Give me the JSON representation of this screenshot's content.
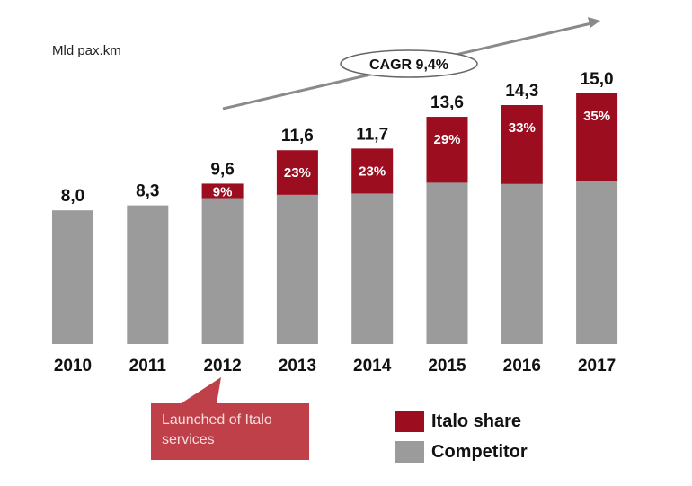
{
  "chart_data": {
    "type": "bar",
    "stacked": true,
    "unit_label": "Mld pax.km",
    "categories": [
      "2010",
      "2011",
      "2012",
      "2013",
      "2014",
      "2015",
      "2016",
      "2017"
    ],
    "totals": [
      8.0,
      8.3,
      9.6,
      11.6,
      11.7,
      13.6,
      14.3,
      15.0
    ],
    "total_labels": [
      "8,0",
      "8,3",
      "9,6",
      "11,6",
      "11,7",
      "13,6",
      "14,3",
      "15,0"
    ],
    "italo_share_pct": [
      0,
      0,
      9,
      23,
      23,
      29,
      33,
      35
    ],
    "share_labels": [
      "",
      "",
      "9%",
      "23%",
      "23%",
      "29%",
      "33%",
      "35%"
    ],
    "series": [
      {
        "name": "Competitor",
        "color": "#9b9b9b"
      },
      {
        "name": "Italo share",
        "color": "#9b0d1f"
      }
    ],
    "legend": [
      "Italo share",
      "Competitor"
    ],
    "legend_position": "bottom-right",
    "annotation_cagr": "CAGR 9,4%",
    "callout": {
      "lines": [
        "Launched of Italo",
        "services"
      ],
      "target": "2012",
      "color": "#c0404a"
    },
    "ylim": [
      0,
      15.5
    ]
  }
}
